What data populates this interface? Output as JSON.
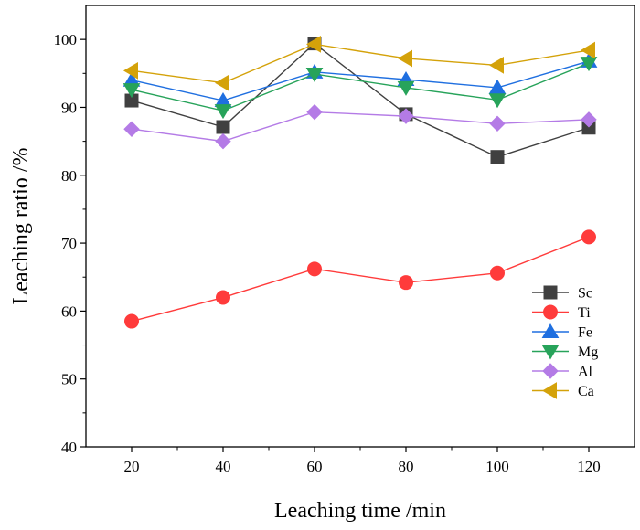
{
  "chart_data": {
    "type": "line",
    "title": "",
    "xlabel": "Leaching time /min",
    "ylabel": "Leaching ratio /%",
    "x": [
      20,
      40,
      60,
      80,
      100,
      120
    ],
    "xlim": [
      10,
      130
    ],
    "ylim": [
      40,
      105
    ],
    "xticks": [
      20,
      40,
      60,
      80,
      100,
      120
    ],
    "yticks": [
      40,
      50,
      60,
      70,
      80,
      90,
      100
    ],
    "grid": false,
    "legend_position": "lower-right",
    "series": [
      {
        "name": "Sc",
        "color": "#404040",
        "marker": "square",
        "values": [
          91.0,
          87.1,
          99.4,
          89.0,
          82.7,
          87.0
        ]
      },
      {
        "name": "Ti",
        "color": "#ff3b3b",
        "marker": "circle",
        "values": [
          58.5,
          62.0,
          66.2,
          64.2,
          65.6,
          70.9
        ]
      },
      {
        "name": "Fe",
        "color": "#1f6fe0",
        "marker": "triangle-up",
        "values": [
          94.0,
          91.0,
          95.2,
          94.1,
          92.9,
          96.8
        ]
      },
      {
        "name": "Mg",
        "color": "#27a35a",
        "marker": "triangle-down",
        "values": [
          92.6,
          89.5,
          94.9,
          92.9,
          91.1,
          96.5
        ]
      },
      {
        "name": "Al",
        "color": "#b47be6",
        "marker": "diamond",
        "values": [
          86.8,
          85.0,
          89.3,
          88.7,
          87.6,
          88.2
        ]
      },
      {
        "name": "Ca",
        "color": "#d4a20a",
        "marker": "triangle-left",
        "values": [
          95.4,
          93.6,
          99.3,
          97.2,
          96.2,
          98.4
        ]
      }
    ]
  }
}
